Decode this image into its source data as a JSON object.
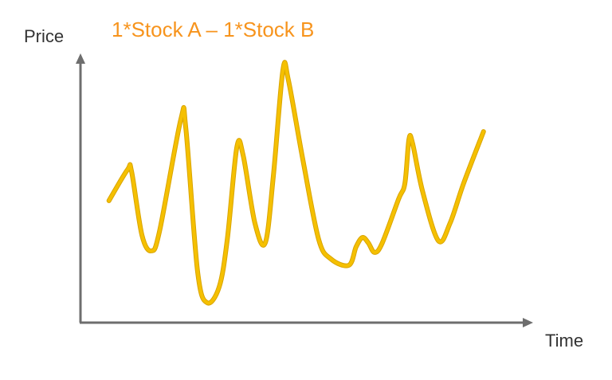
{
  "chart_data": {
    "type": "line",
    "title": "1*Stock A – 1*Stock B",
    "xlabel": "Time",
    "ylabel": "Price",
    "xlim": [
      0,
      100
    ],
    "ylim": [
      0,
      100
    ],
    "grid": false,
    "axis_color": "#6E6E6E",
    "title_color": "#F7941D",
    "line_color": "#F5C000",
    "series": [
      {
        "x": [
          6.3,
          10.4,
          11.3,
          13.6,
          15.7,
          17.5,
          22.2,
          23.3,
          25.9,
          28.0,
          30.7,
          32.5,
          34.6,
          36.0,
          38.6,
          40.9,
          42.7,
          44.8,
          46.0,
          49.2,
          52.7,
          55.4,
          59.4,
          61.0,
          62.4,
          63.7,
          65.1,
          66.8,
          70.4,
          71.8,
          72.7,
          73.5,
          75.7,
          79.2,
          81.8,
          84.8,
          89.2
        ],
        "y": [
          45.7,
          57.3,
          56.7,
          32.8,
          26.9,
          34.3,
          76.1,
          73.1,
          19.4,
          7.5,
          13.4,
          31.3,
          65.7,
          62.7,
          37.3,
          29.9,
          55.2,
          94.6,
          91.0,
          61.2,
          31.3,
          23.9,
          21.5,
          28.4,
          31.9,
          29.9,
          26.3,
          29.9,
          46.3,
          52.2,
          68.7,
          67.2,
          49.3,
          30.7,
          37.3,
          52.2,
          71.6
        ]
      }
    ]
  }
}
